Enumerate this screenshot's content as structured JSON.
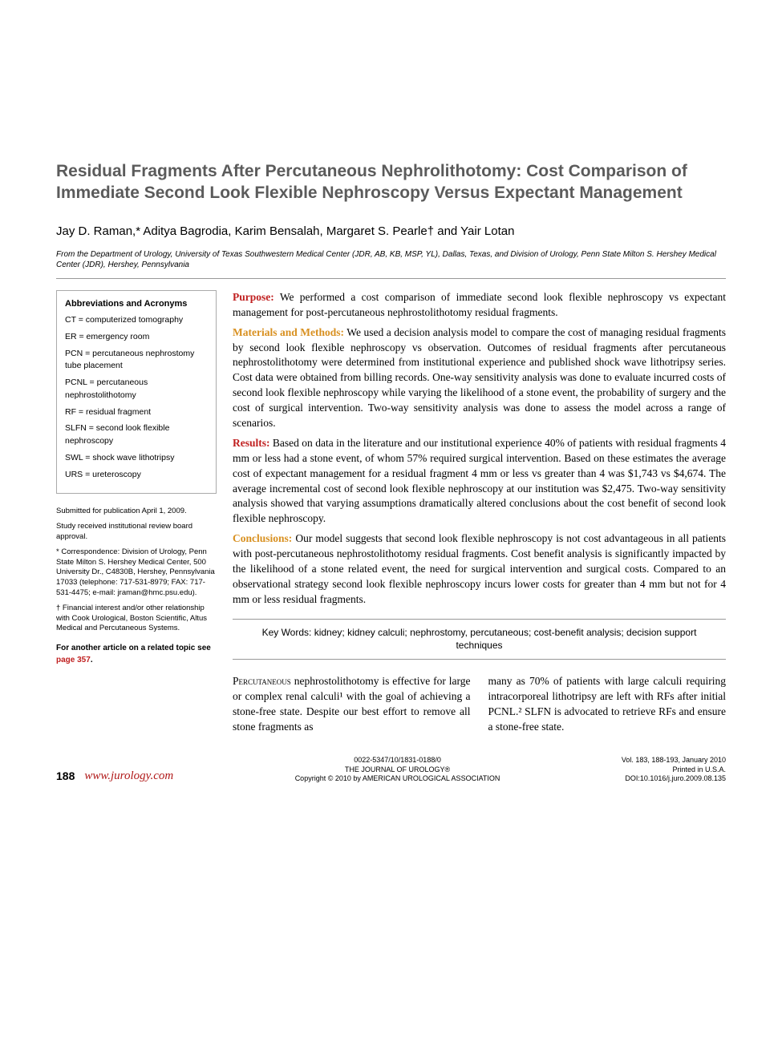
{
  "title": "Residual Fragments After Percutaneous Nephrolithotomy: Cost Comparison of Immediate Second Look Flexible Nephroscopy Versus Expectant Management",
  "authors": "Jay D. Raman,* Aditya Bagrodia, Karim Bensalah, Margaret S. Pearle† and Yair Lotan",
  "affiliation": "From the Department of Urology, University of Texas Southwestern Medical Center (JDR, AB, KB, MSP, YL), Dallas, Texas, and Division of Urology, Penn State Milton S. Hershey Medical Center (JDR), Hershey, Pennsylvania",
  "abbreviations": {
    "heading": "Abbreviations and Acronyms",
    "items": [
      "CT = computerized tomography",
      "ER = emergency room",
      "PCN = percutaneous nephrostomy tube placement",
      "PCNL = percutaneous nephrostolithotomy",
      "RF = residual fragment",
      "SLFN = second look flexible nephroscopy",
      "SWL = shock wave lithotripsy",
      "URS = ureteroscopy"
    ]
  },
  "sidebar_meta": {
    "submitted": "Submitted for publication April 1, 2009.",
    "irb": "Study received institutional review board approval.",
    "correspondence": "* Correspondence: Division of Urology, Penn State Milton S. Hershey Medical Center, 500 University Dr., C4830B, Hershey, Pennsylvania 17033 (telephone: 717-531-8979; FAX: 717-531-4475; e-mail: jraman@hmc.psu.edu).",
    "financial": "† Financial interest and/or other relationship with Cook Urological, Boston Scientific, Altus Medical and Percutaneous Systems.",
    "related_prefix": "For another article on a related topic see ",
    "related_link": "page 357"
  },
  "abstract": {
    "purpose_label": "Purpose:",
    "purpose": " We performed a cost comparison of immediate second look flexible nephroscopy vs expectant management for post-percutaneous nephrostolithotomy residual fragments.",
    "methods_label": "Materials and Methods:",
    "methods": " We used a decision analysis model to compare the cost of managing residual fragments by second look flexible nephroscopy vs observation. Outcomes of residual fragments after percutaneous nephrostolithotomy were determined from institutional experience and published shock wave lithotripsy series. Cost data were obtained from billing records. One-way sensitivity analysis was done to evaluate incurred costs of second look flexible nephroscopy while varying the likelihood of a stone event, the probability of surgery and the cost of surgical intervention. Two-way sensitivity analysis was done to assess the model across a range of scenarios.",
    "results_label": "Results:",
    "results": " Based on data in the literature and our institutional experience 40% of patients with residual fragments 4 mm or less had a stone event, of whom 57% required surgical intervention. Based on these estimates the average cost of expectant management for a residual fragment 4 mm or less vs greater than 4 was $1,743 vs $4,674. The average incremental cost of second look flexible nephroscopy at our institution was $2,475. Two-way sensitivity analysis showed that varying assumptions dramatically altered conclusions about the cost benefit of second look flexible nephroscopy.",
    "conclusions_label": "Conclusions:",
    "conclusions": " Our model suggests that second look flexible nephroscopy is not cost advantageous in all patients with post-percutaneous nephrostolithotomy residual fragments. Cost benefit analysis is significantly impacted by the likelihood of a stone related event, the need for surgical intervention and surgical costs. Compared to an observational strategy second look flexible nephroscopy incurs lower costs for greater than 4 mm but not for 4 mm or less residual fragments."
  },
  "keywords_label": "Key Words:",
  "keywords": " kidney; kidney calculi; nephrostomy, percutaneous; cost-benefit analysis; decision support techniques",
  "body": {
    "col1_lead": "Percutaneous",
    "col1": " nephrostolithotomy is effective for large or complex renal calculi¹ with the goal of achieving a stone-free state. Despite our best effort to remove all stone fragments as",
    "col2": "many as 70% of patients with large calculi requiring intracorporeal lithotripsy are left with RFs after initial PCNL.² SLFN is advocated to retrieve RFs and ensure a stone-free state."
  },
  "footer": {
    "page_number": "188",
    "url": "www.jurology.com",
    "issn": "0022-5347/10/1831-0188/0",
    "journal": "THE JOURNAL OF UROLOGY®",
    "copyright": "Copyright © 2010 by AMERICAN UROLOGICAL ASSOCIATION",
    "vol": "Vol. 183, 188-193, January 2010",
    "printed": "Printed in U.S.A.",
    "doi": "DOI:10.1016/j.juro.2009.08.135"
  },
  "colors": {
    "title": "#5b5b5b",
    "accent_red": "#c02020",
    "accent_orange": "#d89020",
    "url_red": "#b01818",
    "text": "#000000",
    "rule": "#999999"
  },
  "typography": {
    "title_pt": 21,
    "authors_pt": 15,
    "affiliation_pt": 10,
    "body_pt": 13.5,
    "sidebar_pt": 10.5,
    "footer_pt": 9,
    "title_font": "Arial",
    "body_font": "Times New Roman"
  }
}
